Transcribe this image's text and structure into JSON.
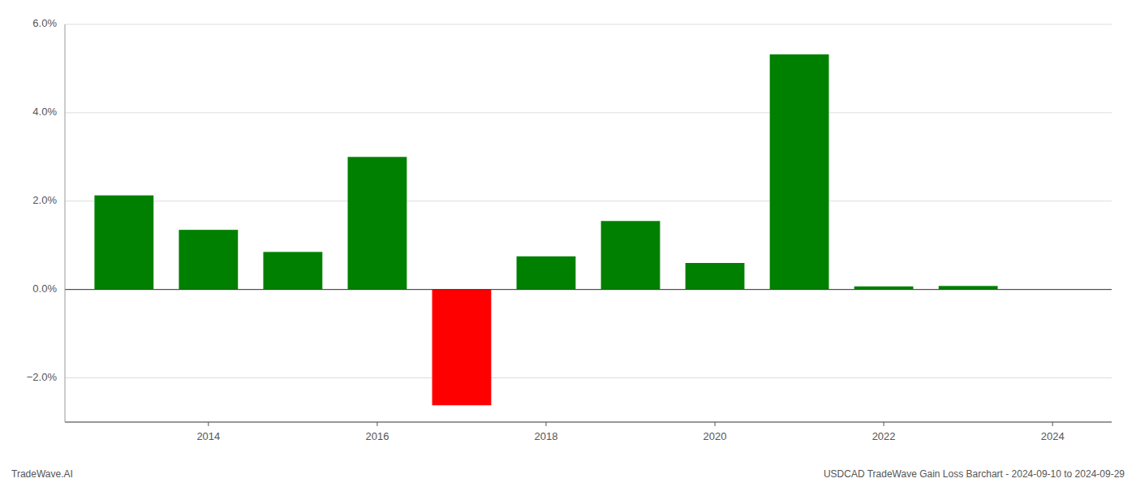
{
  "chart_data": {
    "type": "bar",
    "x": [
      2013,
      2014,
      2015,
      2016,
      2017,
      2018,
      2019,
      2020,
      2021,
      2022,
      2023
    ],
    "values": [
      2.13,
      1.35,
      0.85,
      3.0,
      -2.62,
      0.75,
      1.55,
      0.6,
      5.32,
      0.07,
      0.08
    ],
    "colors": [
      "#008000",
      "#008000",
      "#008000",
      "#008000",
      "#ff0000",
      "#008000",
      "#008000",
      "#008000",
      "#008000",
      "#008000",
      "#008000"
    ],
    "xlim": [
      2012.3,
      2024.7
    ],
    "xticks": [
      2014,
      2016,
      2018,
      2020,
      2022,
      2024
    ],
    "ylim": [
      -3.0,
      6.0
    ],
    "yticks": [
      {
        "value": -2,
        "label": "−2.0%"
      },
      {
        "value": 0,
        "label": "0.0%"
      },
      {
        "value": 2,
        "label": "2.0%"
      },
      {
        "value": 4,
        "label": "4.0%"
      },
      {
        "value": 6,
        "label": "6.0%"
      }
    ],
    "grid": true,
    "annotations": [
      "TradeWave.AI",
      "USDCAD TradeWave Gain Loss Barchart - 2024-09-10 to 2024-09-29"
    ]
  }
}
